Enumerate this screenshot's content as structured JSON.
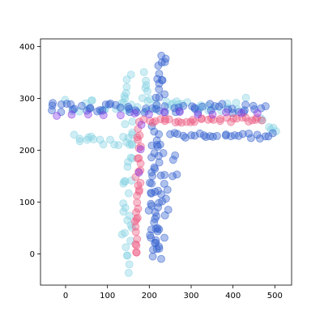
{
  "chart_data": {
    "type": "scatter",
    "title": "",
    "xlabel": "",
    "ylabel": "",
    "xlim": [
      -60,
      540
    ],
    "ylim": [
      -60,
      415
    ],
    "xticks": [
      0,
      100,
      200,
      300,
      400,
      500
    ],
    "yticks": [
      0,
      100,
      200,
      300,
      400
    ],
    "grid": false,
    "legend": "none",
    "point_alpha": 0.4,
    "series": [
      {
        "color": "#86d3e3",
        "shape": "T",
        "segments": [
          {
            "from": [
              10,
              288
            ],
            "to": [
              420,
              288
            ],
            "points": 42,
            "jitter": 14
          },
          {
            "from": [
              20,
              225
            ],
            "to": [
              140,
              220
            ],
            "points": 14,
            "jitter": 12
          },
          {
            "from": [
              150,
              345
            ],
            "to": [
              150,
              210
            ],
            "points": 14,
            "jitter": 12
          },
          {
            "from": [
              150,
              210
            ],
            "to": [
              145,
              -25
            ],
            "points": 26,
            "jitter": 12
          },
          {
            "from": [
              180,
              345
            ],
            "to": [
              200,
              300
            ],
            "points": 6,
            "jitter": 10
          },
          {
            "from": [
              460,
              260
            ],
            "to": [
              510,
              235
            ],
            "points": 6,
            "jitter": 8
          }
        ]
      },
      {
        "color": "#3461cf",
        "shape": "T",
        "segments": [
          {
            "from": [
              -40,
              283
            ],
            "to": [
              470,
              280
            ],
            "points": 60,
            "jitter": 9
          },
          {
            "from": [
              230,
              385
            ],
            "to": [
              225,
              300
            ],
            "points": 14,
            "jitter": 12
          },
          {
            "from": [
              215,
              240
            ],
            "to": [
              205,
              0
            ],
            "points": 30,
            "jitter": 10
          },
          {
            "from": [
              245,
              230
            ],
            "to": [
              500,
              228
            ],
            "points": 26,
            "jitter": 6
          },
          {
            "from": [
              225,
              220
            ],
            "to": [
              225,
              -10
            ],
            "points": 20,
            "jitter": 12
          },
          {
            "from": [
              265,
              190
            ],
            "to": [
              220,
              20
            ],
            "points": 12,
            "jitter": 10
          }
        ]
      },
      {
        "color": "#ec5a82",
        "shape": "T",
        "segments": [
          {
            "from": [
              180,
              255
            ],
            "to": [
              470,
              260
            ],
            "points": 34,
            "jitter": 5
          },
          {
            "from": [
              175,
              240
            ],
            "to": [
              170,
              0
            ],
            "points": 30,
            "jitter": 6
          }
        ]
      },
      {
        "color": "#8a3be8",
        "shape": "T",
        "segments": [
          {
            "from": [
              -20,
              270
            ],
            "to": [
              460,
              272
            ],
            "points": 14,
            "jitter": 4
          },
          {
            "from": [
              180,
              248
            ],
            "to": [
              175,
              160
            ],
            "points": 3,
            "jitter": 3
          }
        ]
      }
    ]
  }
}
